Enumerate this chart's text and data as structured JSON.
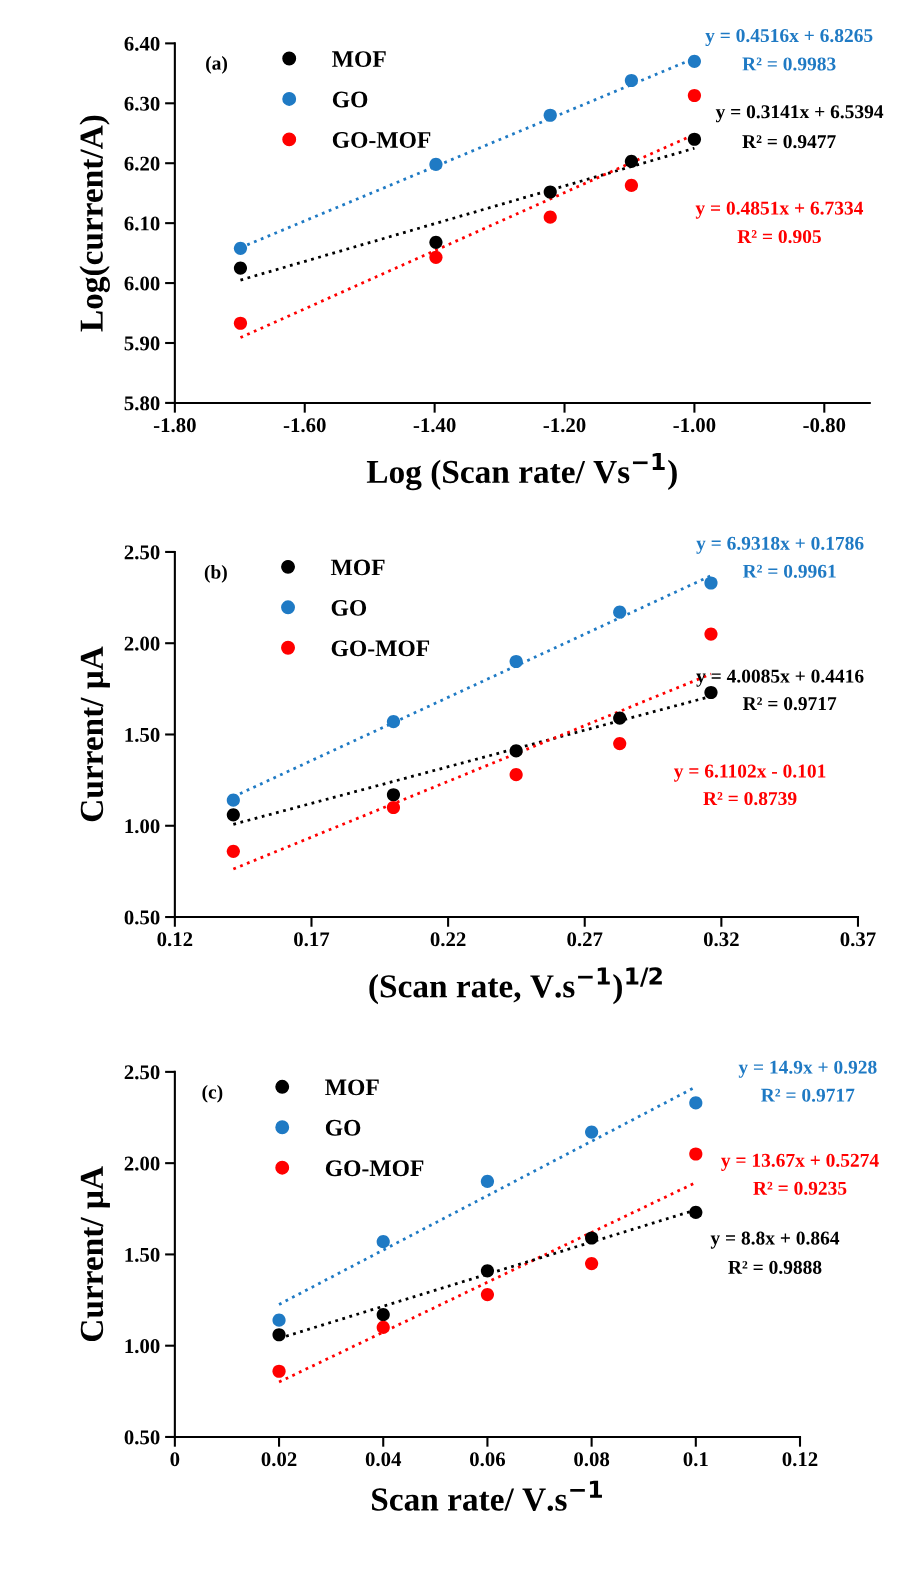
{
  "chart_data": [
    {
      "type": "scatter",
      "xlabel": "Log (Scan rate/ Vs$^{−1}$)",
      "ylabel": "Log(current/A)",
      "x": [
        -1.699,
        -1.398,
        -1.222,
        -1.097,
        -1.0
      ],
      "xlim": [
        -1.8,
        -0.73
      ],
      "ylim": [
        5.8,
        6.4
      ],
      "xticks": [
        {
          "value": -1.8,
          "label": "-1.80"
        },
        {
          "value": -1.6,
          "label": "-1.60"
        },
        {
          "value": -1.4,
          "label": "-1.40"
        },
        {
          "value": -1.2,
          "label": "-1.20"
        },
        {
          "value": -1.0,
          "label": "-1.00"
        },
        {
          "value": -0.8,
          "label": "-0.80"
        }
      ],
      "yticks": [
        {
          "value": 5.8,
          "label": "5.80"
        },
        {
          "value": 5.9,
          "label": "5.90"
        },
        {
          "value": 6.0,
          "label": "6.00"
        },
        {
          "value": 6.1,
          "label": "6.10"
        },
        {
          "value": 6.2,
          "label": "6.20"
        },
        {
          "value": 6.3,
          "label": "6.30"
        },
        {
          "value": 6.4,
          "label": "6.40"
        }
      ],
      "marker": "circle",
      "grid": false,
      "legend": "top left",
      "series": [
        {
          "name": "MOF",
          "color": "#000000",
          "values": [
            6.025,
            6.068,
            6.152,
            6.203,
            6.24
          ]
        },
        {
          "name": "GO",
          "color": "#1f7ac4",
          "values": [
            6.058,
            6.198,
            6.28,
            6.338,
            6.37
          ]
        },
        {
          "name": "GO-MOF",
          "color": "#ff0000",
          "values": [
            5.933,
            6.043,
            6.11,
            6.163,
            6.313
          ]
        },
        {
          "type": "line",
          "color": "#1f7ac4",
          "line_style": "dotted",
          "marker": "none",
          "x": [
            -1.699,
            -1.0
          ],
          "values": [
            6.059,
            6.375
          ]
        },
        {
          "type": "line",
          "color": "#000000",
          "line_style": "dotted",
          "marker": "none",
          "x": [
            -1.699,
            -1.0
          ],
          "values": [
            6.005,
            6.225
          ]
        },
        {
          "type": "line",
          "color": "#ff0000",
          "line_style": "dotted",
          "marker": "none",
          "x": [
            -1.699,
            -1.0
          ],
          "values": [
            5.909,
            6.248
          ]
        }
      ],
      "annotations": [
        "(a)",
        "y = 0.4516x + 6.8265",
        "R² = 0.9983",
        "y = 0.3141x + 6.5394",
        "R² = 0.9477",
        "y = 0.4851x + 6.7334",
        "R² = 0.905"
      ]
    },
    {
      "type": "scatter",
      "xlabel": "(Scan rate, V.s$^{−1}$)$^{1/2}$",
      "ylabel": "Current/ μA",
      "x": [
        0.1414,
        0.2,
        0.2449,
        0.2828,
        0.3162
      ],
      "xlim": [
        0.12,
        0.37
      ],
      "ylim": [
        0.5,
        2.5
      ],
      "xticks": [
        0.12,
        0.17,
        0.22,
        0.27,
        0.32,
        0.37
      ],
      "yticks": [
        {
          "value": 0.5,
          "label": "0.50"
        },
        {
          "value": 1.0,
          "label": "1.00"
        },
        {
          "value": 1.5,
          "label": "1.50"
        },
        {
          "value": 2.0,
          "label": "2.00"
        },
        {
          "value": 2.5,
          "label": "2.50"
        }
      ],
      "marker": "circle",
      "grid": false,
      "legend": "top left",
      "series": [
        {
          "name": "MOF",
          "color": "#000000",
          "values": [
            1.06,
            1.17,
            1.41,
            1.59,
            1.73
          ]
        },
        {
          "name": "GO",
          "color": "#1f7ac4",
          "values": [
            1.14,
            1.57,
            1.9,
            2.17,
            2.33
          ]
        },
        {
          "name": "GO-MOF",
          "color": "#ff0000",
          "values": [
            0.86,
            1.1,
            1.28,
            1.45,
            2.05
          ]
        },
        {
          "type": "line",
          "color": "#1f7ac4",
          "line_style": "dotted",
          "marker": "none",
          "x": [
            0.1414,
            0.3162
          ],
          "values": [
            1.159,
            2.37
          ]
        },
        {
          "type": "line",
          "color": "#000000",
          "line_style": "dotted",
          "marker": "none",
          "x": [
            0.1414,
            0.3162
          ],
          "values": [
            1.008,
            1.709
          ]
        },
        {
          "type": "line",
          "color": "#ff0000",
          "line_style": "dotted",
          "marker": "none",
          "x": [
            0.1414,
            0.3162
          ],
          "values": [
            0.763,
            1.831
          ]
        }
      ],
      "annotations": [
        "(b)",
        "y = 6.9318x + 0.1786",
        "R² = 0.9961",
        "y = 4.0085x + 0.4416",
        "R² = 0.9717",
        "y = 6.1102x - 0.101",
        "R² = 0.8739"
      ]
    },
    {
      "type": "scatter",
      "xlabel": "Scan rate/ V.s$^{−1}$",
      "ylabel": "Current/ μA",
      "x": [
        0.02,
        0.04,
        0.06,
        0.08,
        0.1
      ],
      "xlim": [
        0,
        0.12
      ],
      "ylim": [
        0.5,
        2.5
      ],
      "xticks": [
        0,
        0.02,
        0.04,
        0.06,
        0.08,
        0.1,
        0.12
      ],
      "yticks": [
        {
          "value": 0.5,
          "label": "0.50"
        },
        {
          "value": 1.0,
          "label": "1.00"
        },
        {
          "value": 1.5,
          "label": "1.50"
        },
        {
          "value": 2.0,
          "label": "2.00"
        },
        {
          "value": 2.5,
          "label": "2.50"
        }
      ],
      "marker": "circle",
      "grid": false,
      "legend": "top left",
      "series": [
        {
          "name": "MOF",
          "color": "#000000",
          "values": [
            1.06,
            1.17,
            1.41,
            1.59,
            1.73
          ]
        },
        {
          "name": "GO",
          "color": "#1f7ac4",
          "values": [
            1.14,
            1.57,
            1.9,
            2.17,
            2.33
          ]
        },
        {
          "name": "GO-MOF",
          "color": "#ff0000",
          "values": [
            0.86,
            1.1,
            1.28,
            1.45,
            2.05
          ]
        },
        {
          "type": "line",
          "color": "#1f7ac4",
          "line_style": "dotted",
          "marker": "none",
          "x": [
            0.02,
            0.1
          ],
          "values": [
            1.226,
            2.418
          ]
        },
        {
          "type": "line",
          "color": "#ff0000",
          "line_style": "dotted",
          "marker": "none",
          "x": [
            0.02,
            0.1
          ],
          "values": [
            0.801,
            1.894
          ]
        },
        {
          "type": "line",
          "color": "#000000",
          "line_style": "dotted",
          "marker": "none",
          "x": [
            0.02,
            0.1
          ],
          "values": [
            1.04,
            1.744
          ]
        }
      ],
      "annotations": [
        "(c)",
        "y = 14.9x + 0.928",
        "R² = 0.9717",
        "y = 13.67x + 0.5274",
        "R² = 0.9235",
        "y = 8.8x + 0.864",
        "R² = 0.9888"
      ]
    }
  ]
}
